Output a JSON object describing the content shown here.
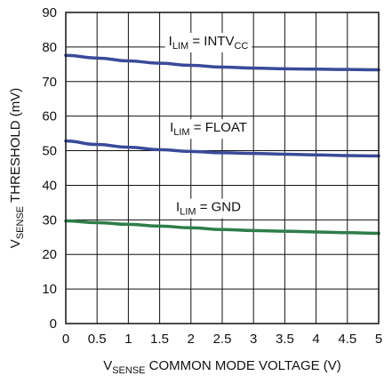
{
  "chart_data": {
    "type": "line",
    "xlabel": {
      "main": "V",
      "sub": "SENSE",
      "rest": " COMMON MODE VOLTAGE (V)"
    },
    "ylabel": {
      "main": "V",
      "sub": "SENSE",
      "rest": " THRESHOLD (mV)"
    },
    "xlim": [
      0,
      5
    ],
    "ylim": [
      0,
      90
    ],
    "x_ticks": [
      "0",
      "0.5",
      "1",
      "1.5",
      "2",
      "2.5",
      "3",
      "3.5",
      "4",
      "4.5",
      "5"
    ],
    "y_ticks": [
      "0",
      "10",
      "20",
      "30",
      "40",
      "50",
      "60",
      "70",
      "80",
      "90"
    ],
    "grid": true,
    "series": [
      {
        "name": {
          "main": "I",
          "sub": "LIM",
          "mid": " = INTV",
          "sub2": "CC"
        },
        "color": "#3a4a9a",
        "x": [
          0,
          0.5,
          1,
          1.5,
          2,
          2.5,
          3,
          3.5,
          4,
          4.5,
          5
        ],
        "y": [
          77.6,
          76.8,
          76.0,
          75.3,
          74.7,
          74.2,
          73.9,
          73.7,
          73.6,
          73.5,
          73.4
        ]
      },
      {
        "name": {
          "main": "I",
          "sub": "LIM",
          "mid": " = FLOAT",
          "sub2": ""
        },
        "color": "#3a4a9a",
        "x": [
          0,
          0.5,
          1,
          1.5,
          2,
          2.5,
          3,
          3.5,
          4,
          4.5,
          5
        ],
        "y": [
          52.8,
          51.8,
          51.0,
          50.3,
          49.8,
          49.4,
          49.2,
          49.0,
          48.8,
          48.6,
          48.5
        ]
      },
      {
        "name": {
          "main": "I",
          "sub": "LIM",
          "mid": " = GND",
          "sub2": ""
        },
        "color": "#2e7d4a",
        "x": [
          0,
          0.5,
          1,
          1.5,
          2,
          2.5,
          3,
          3.5,
          4,
          4.5,
          5
        ],
        "y": [
          29.7,
          29.2,
          28.7,
          28.2,
          27.7,
          27.2,
          26.9,
          26.7,
          26.5,
          26.3,
          26.1
        ]
      }
    ]
  }
}
